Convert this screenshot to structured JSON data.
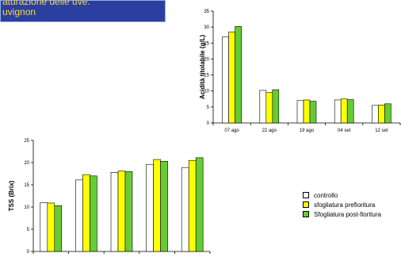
{
  "title": {
    "line1": "aturazione delle uve:",
    "line2": "uvignon"
  },
  "legend": [
    {
      "label": "controllo",
      "color": "#ffffff"
    },
    {
      "label": "sfogliatura prefioritura",
      "color": "#ffff00"
    },
    {
      "label": "Sfogliatura post-fioritura",
      "color": "#66cc33"
    }
  ],
  "chart_data": [
    {
      "type": "bar",
      "categories": [
        "07 ago",
        "22 ago",
        "19 ago",
        "04 set",
        "12 set"
      ],
      "series": [
        {
          "name": "controllo",
          "values": [
            27,
            10.2,
            7,
            7.2,
            5.5
          ]
        },
        {
          "name": "sfogliatura prefioritura",
          "values": [
            28.5,
            9.5,
            7.2,
            7.5,
            5.6
          ]
        },
        {
          "name": "Sfogliatura post-fioritura",
          "values": [
            30.2,
            10.4,
            6.8,
            7.3,
            6
          ]
        }
      ],
      "xlabel": "",
      "ylabel": "Acidità titolabile (g/L)",
      "ylim": [
        0,
        35
      ],
      "yticks": [
        "0",
        "5",
        "10",
        "15",
        "20",
        "25",
        "30",
        "35"
      ],
      "grid": false
    },
    {
      "type": "bar",
      "categories": [
        "",
        "",
        "",
        "",
        ""
      ],
      "series": [
        {
          "name": "controllo",
          "values": [
            11,
            16.1,
            17.8,
            19.6,
            18.9
          ]
        },
        {
          "name": "sfogliatura prefioritura",
          "values": [
            10.9,
            17.3,
            18.1,
            20.7,
            20.5
          ]
        },
        {
          "name": "Sfogliatura post-fioritura",
          "values": [
            10.3,
            17,
            18,
            20.3,
            21.1
          ]
        }
      ],
      "xlabel": "",
      "ylabel": "TSS (Brix)",
      "ylim": [
        0,
        25
      ],
      "yticks": [
        "0",
        "5",
        "10",
        "15",
        "20",
        "25"
      ],
      "grid": false
    }
  ]
}
